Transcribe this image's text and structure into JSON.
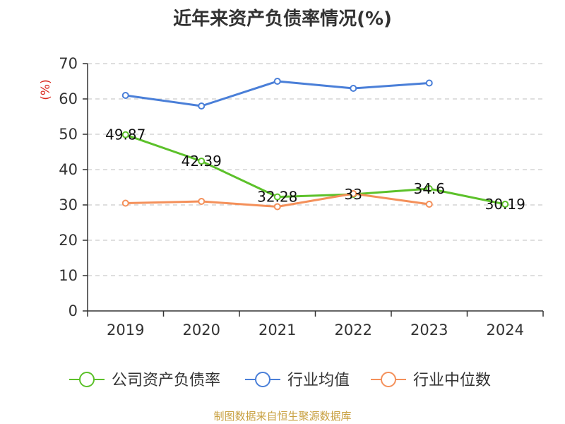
{
  "source_text": "制图数据来自恒生聚源数据库",
  "chart_data": {
    "type": "line",
    "title": "近年来资产负债率情况(%)",
    "ylabel": "(%)",
    "xlabel": "",
    "categories": [
      "2019",
      "2020",
      "2021",
      "2022",
      "2023",
      "2024"
    ],
    "ylim": [
      0,
      70
    ],
    "yticks": [
      0,
      10,
      20,
      30,
      40,
      50,
      60,
      70
    ],
    "grid": true,
    "legend_position": "bottom",
    "series": [
      {
        "name": "公司资产负债率",
        "color": "#5cc12a",
        "values": [
          49.87,
          42.39,
          32.28,
          33,
          34.6,
          30.19
        ],
        "labels": [
          "49.87",
          "42.39",
          "32.28",
          "33",
          "34.6",
          "30.19"
        ]
      },
      {
        "name": "行业均值",
        "color": "#4a7fd8",
        "values": [
          61,
          58,
          65,
          63,
          64.5,
          null
        ]
      },
      {
        "name": "行业中位数",
        "color": "#f4905a",
        "values": [
          30.5,
          31,
          29.5,
          33.2,
          30.2,
          null
        ]
      }
    ]
  }
}
